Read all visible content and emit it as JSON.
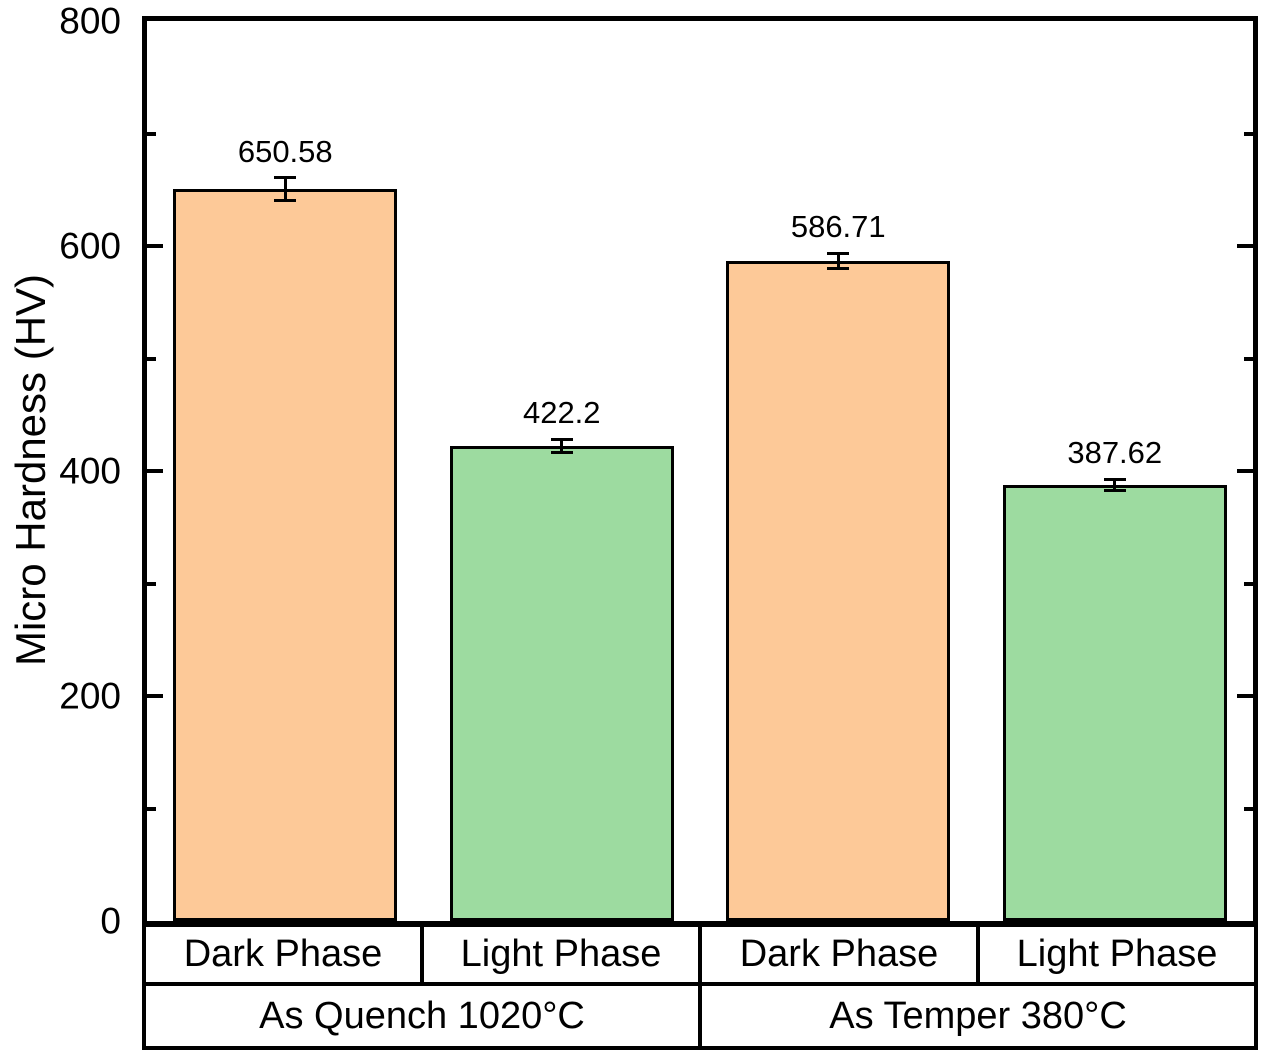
{
  "figure": {
    "background": "#ffffff",
    "axis_color": "#000000",
    "text_color": "#000000"
  },
  "chart_data": {
    "type": "bar",
    "ylabel": "Micro Hardness (HV)",
    "xlabel": "",
    "ylim": [
      0,
      800
    ],
    "yticks_major": [
      0,
      200,
      400,
      600,
      800
    ],
    "yticks_minor": [
      100,
      300,
      500,
      700
    ],
    "grid": false,
    "legend": "none",
    "bar_colors": {
      "dark": "#FDC998",
      "light": "#9DDBA0"
    },
    "bar_border_color": "#000000",
    "categories": [
      "Dark Phase",
      "Light Phase",
      "Dark Phase",
      "Light Phase"
    ],
    "groups": [
      {
        "label": "As Quench 1020°C",
        "bars": [
          {
            "category": "Dark Phase",
            "series": "dark",
            "value": 650.58,
            "label": "650.58",
            "error": 10
          },
          {
            "category": "Light Phase",
            "series": "light",
            "value": 422.2,
            "label": "422.2",
            "error": 6
          }
        ]
      },
      {
        "label": "As Temper 380°C",
        "bars": [
          {
            "category": "Dark Phase",
            "series": "dark",
            "value": 586.71,
            "label": "586.71",
            "error": 7
          },
          {
            "category": "Light Phase",
            "series": "light",
            "value": 387.62,
            "label": "387.62",
            "error": 5
          }
        ]
      }
    ]
  }
}
